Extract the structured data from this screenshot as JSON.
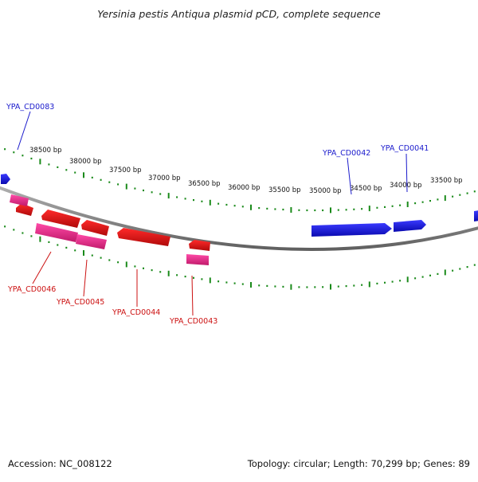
{
  "title": "Yersinia pestis Antiqua plasmid pCD, complete sequence",
  "scale_labels": [
    "38500 bp",
    "38000 bp",
    "37500 bp",
    "37000 bp",
    "36500 bp",
    "36000 bp",
    "35500 bp",
    "35000 bp",
    "34500 bp",
    "34000 bp",
    "33500 bp"
  ],
  "gene_labels_top": [
    "YPA_CD0083",
    "YPA_CD0042",
    "YPA_CD0041"
  ],
  "gene_labels_bottom": [
    "YPA_CD0046",
    "YPA_CD0045",
    "YPA_CD0044",
    "YPA_CD0043"
  ],
  "footer": {
    "accession": "Accession: NC_008122",
    "topology": "Topology: circular; Length: 70,299 bp; Genes: 89"
  },
  "colors": {
    "forward_gene": "#1a1ae6",
    "reverse_gene": "#e61a1a",
    "reverse_gene_alt": "#e6338c",
    "backbone": "#8a8a8a",
    "tick": "#1a8a1a",
    "label_top": "#1a1acc",
    "label_bottom": "#cc1111"
  }
}
